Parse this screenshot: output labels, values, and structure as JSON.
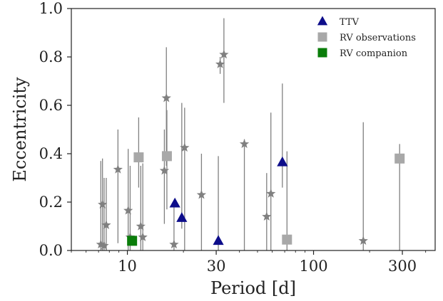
{
  "chart_data": {
    "type": "scatter",
    "xlabel": "Period [d]",
    "ylabel": "Eccentricity",
    "xscale": "log",
    "xlim": [
      5,
      450
    ],
    "ylim": [
      0,
      1.0
    ],
    "x_ticks": [
      {
        "value": 10,
        "label": "10"
      },
      {
        "value": 30,
        "label": "30"
      },
      {
        "value": 100,
        "label": "100"
      },
      {
        "value": 300,
        "label": "300"
      }
    ],
    "y_ticks": [
      {
        "value": 0.0,
        "label": "0.0"
      },
      {
        "value": 0.2,
        "label": "0.2"
      },
      {
        "value": 0.4,
        "label": "0.4"
      },
      {
        "value": 0.6,
        "label": "0.6"
      },
      {
        "value": 0.8,
        "label": "0.8"
      },
      {
        "value": 1.0,
        "label": "1.0"
      }
    ],
    "legend_position": "top-right",
    "error_bar_color": "#808080",
    "background_points": {
      "marker": "star",
      "color": "#808080",
      "points": [
        {
          "x": 7.2,
          "y": 0.025,
          "lo": 0.0,
          "hi": 0.37
        },
        {
          "x": 7.35,
          "y": 0.19,
          "lo": 0.0,
          "hi": 0.38
        },
        {
          "x": 7.5,
          "y": 0.02,
          "lo": 0.0,
          "hi": 0.3
        },
        {
          "x": 7.7,
          "y": 0.105,
          "lo": 0.0,
          "hi": 0.3
        },
        {
          "x": 8.9,
          "y": 0.335,
          "lo": 0.03,
          "hi": 0.5
        },
        {
          "x": 10.1,
          "y": 0.165,
          "lo": 0.0,
          "hi": 0.42
        },
        {
          "x": 10.35,
          "y": 0.055,
          "lo": 0.0,
          "hi": 0.35
        },
        {
          "x": 11.8,
          "y": 0.1,
          "lo": 0.0,
          "hi": 0.35
        },
        {
          "x": 12.1,
          "y": 0.055,
          "lo": 0.0,
          "hi": 0.36
        },
        {
          "x": 15.8,
          "y": 0.33,
          "lo": 0.11,
          "hi": 0.5
        },
        {
          "x": 16.2,
          "y": 0.63,
          "lo": 0.35,
          "hi": 0.84
        },
        {
          "x": 17.8,
          "y": 0.025,
          "lo": 0.0,
          "hi": 0.2
        },
        {
          "x": 20.3,
          "y": 0.425,
          "lo": 0.0,
          "hi": 0.59
        },
        {
          "x": 25.0,
          "y": 0.23,
          "lo": 0.0,
          "hi": 0.4
        },
        {
          "x": 31.5,
          "y": 0.77,
          "lo": 0.73,
          "hi": 0.8
        },
        {
          "x": 33.0,
          "y": 0.81,
          "lo": 0.61,
          "hi": 0.96
        },
        {
          "x": 42.5,
          "y": 0.44,
          "lo": 0.0,
          "hi": 0.46
        },
        {
          "x": 56.0,
          "y": 0.14,
          "lo": 0.0,
          "hi": 0.32
        },
        {
          "x": 59.0,
          "y": 0.235,
          "lo": 0.0,
          "hi": 0.57
        },
        {
          "x": 185.0,
          "y": 0.04,
          "lo": 0.0,
          "hi": 0.53
        }
      ]
    },
    "series": [
      {
        "name": "TTV",
        "marker": "triangle",
        "color": "#0d0d8a",
        "points": [
          {
            "x": 18.0,
            "y": 0.195
          },
          {
            "x": 19.6,
            "y": 0.135,
            "lo": 0.09,
            "hi": 0.61
          },
          {
            "x": 30.8,
            "y": 0.04,
            "lo": 0.0,
            "hi": 0.39
          },
          {
            "x": 68.0,
            "y": 0.365,
            "lo": 0.26,
            "hi": 0.69
          }
        ]
      },
      {
        "name": "RV observations",
        "marker": "square",
        "color": "#a8a8a8",
        "points": [
          {
            "x": 11.5,
            "y": 0.385,
            "lo": 0.26,
            "hi": 0.55
          },
          {
            "x": 16.3,
            "y": 0.39,
            "lo": 0.17,
            "hi": 0.58
          },
          {
            "x": 72.0,
            "y": 0.045,
            "lo": 0.0,
            "hi": 0.41
          },
          {
            "x": 290.0,
            "y": 0.38,
            "lo": 0.0,
            "hi": 0.44
          }
        ]
      },
      {
        "name": "RV companion",
        "marker": "square",
        "color": "#0a7d0a",
        "points": [
          {
            "x": 10.6,
            "y": 0.04
          }
        ]
      }
    ]
  }
}
